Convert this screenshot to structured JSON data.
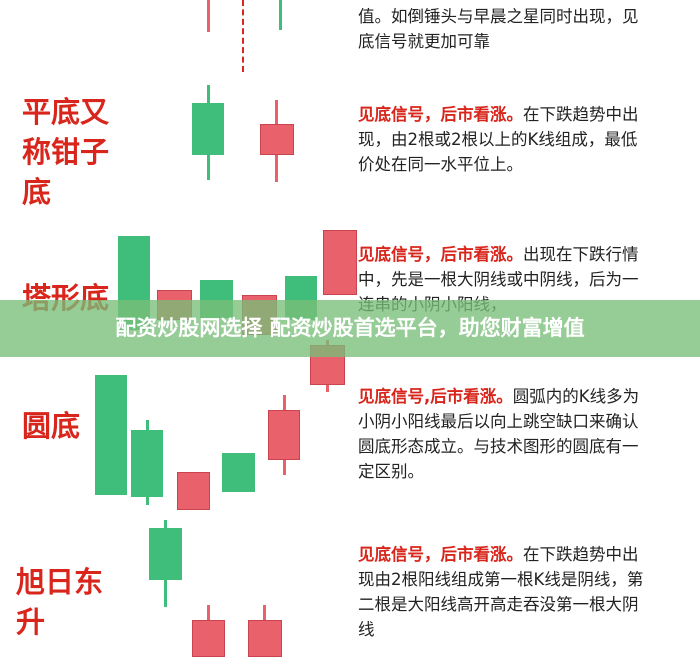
{
  "intro_text": "值。如倒锤头与早晨之星同时出现，见底信号就更加可靠",
  "sections": [
    {
      "title": "平底又称钳子底",
      "highlight": "见底信号，后市看涨。",
      "text": "在下跌趋势中出现，由2根或2根以上的K线组成，最低价处在同一水平位上。"
    },
    {
      "title": "塔形底",
      "highlight": "见底信号，后市看涨。",
      "text": "出现在下跌行情中，先是一根大阴线或中阴线，后为一连串的小阴小阳线，"
    },
    {
      "title": "圆底",
      "highlight": "见底信号,后市看涨。",
      "text": "圆弧内的K线多为小阴小阳线最后以向上跳空缺口来确认圆底形态成立。与技术图形的圆底有一定区别。"
    },
    {
      "title": "旭日东升",
      "highlight": "见底信号，后市看涨。",
      "text": "在下跌趋势中出现由2根阳线组成第一根K线是阴线，第二根是大阳线高开高走吞没第一根大阴线"
    }
  ],
  "banner": "配资炒股网选择 配资炒股首选平台，助您财富增值"
}
